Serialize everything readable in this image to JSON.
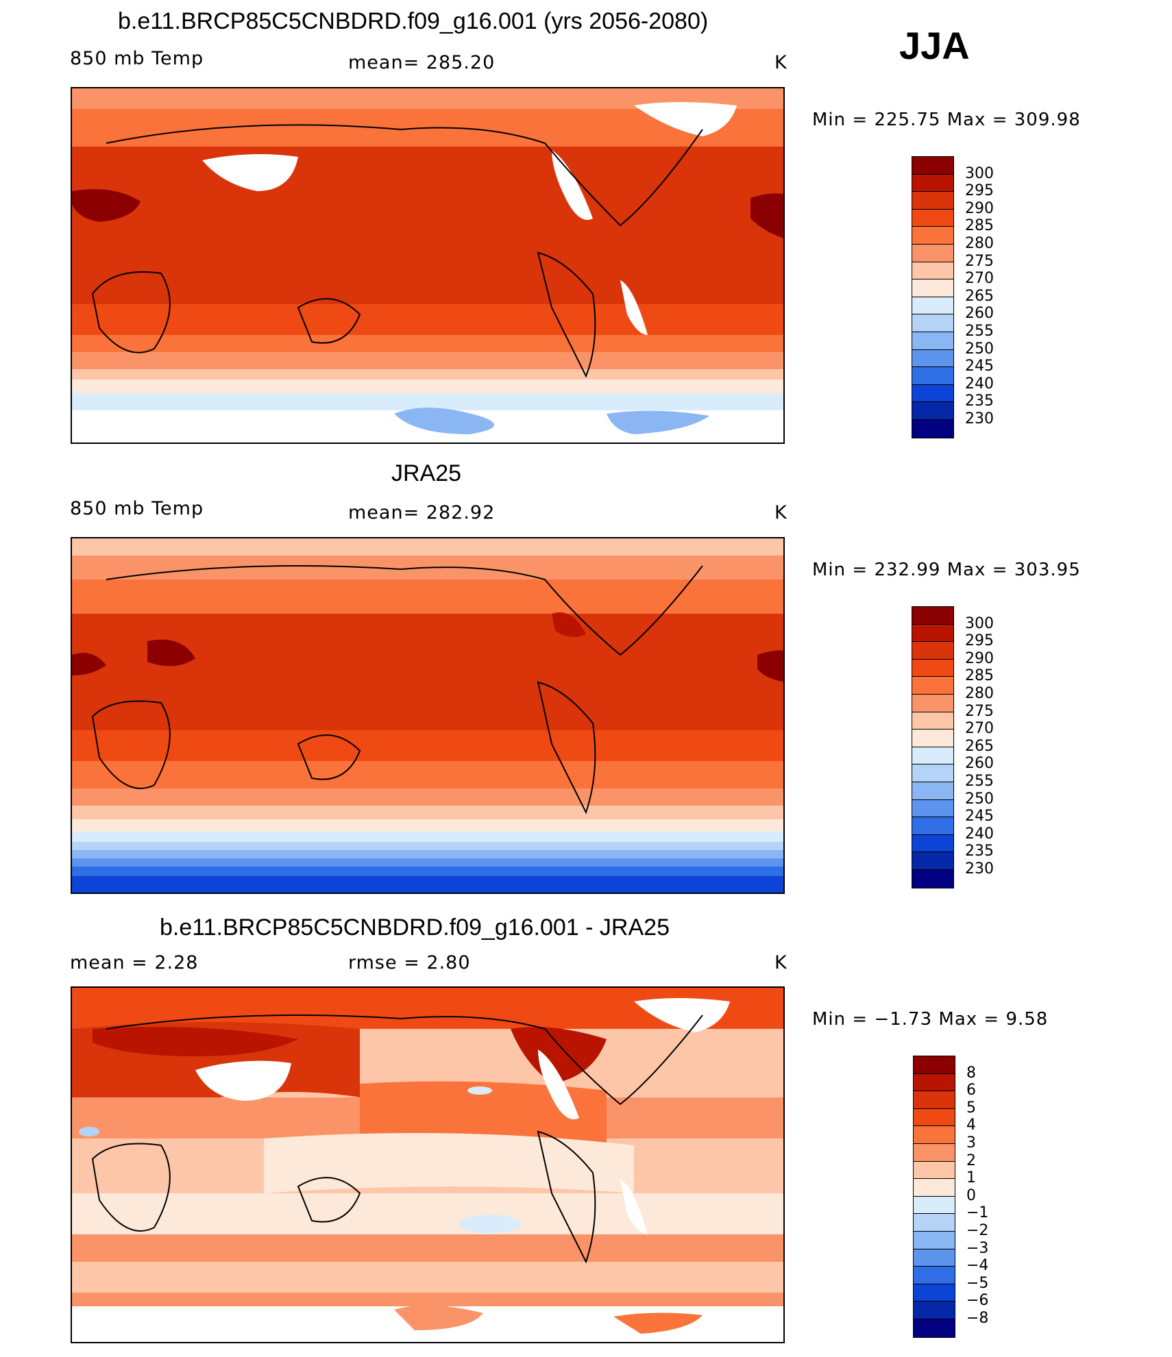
{
  "season": "JJA",
  "panels": [
    {
      "title": "b.e11.BRCP85C5CNBDRD.f09_g16.001 (yrs 2056-2080)",
      "variable": "850 mb Temp",
      "stat1": "mean=  285.20",
      "units": "K",
      "range": "Min  =  225.75  Max  =  309.98"
    },
    {
      "title": "JRA25",
      "variable": "850 mb Temp",
      "stat1": "mean=  282.92",
      "units": "K",
      "range": "Min  =  232.99  Max  =  303.95"
    },
    {
      "title": "b.e11.BRCP85C5CNBDRD.f09_g16.001 - JRA25",
      "variable": "mean =     2.28",
      "stat1": "rmse =     2.80",
      "units": "K",
      "range": "Min  =   −1.73  Max  =     9.58"
    }
  ],
  "colorbar_abs": {
    "labels": [
      "300",
      "295",
      "290",
      "285",
      "280",
      "275",
      "270",
      "265",
      "260",
      "255",
      "250",
      "245",
      "240",
      "235",
      "230"
    ],
    "colors": [
      "#8b0000",
      "#b81400",
      "#d9340a",
      "#f04a14",
      "#f9733a",
      "#fa9468",
      "#fdc6a8",
      "#fde9d9",
      "#d8ecfb",
      "#b4d3f7",
      "#8ab6f4",
      "#5c94ee",
      "#2f6ee4",
      "#0b44d6",
      "#0428a8",
      "#000080"
    ]
  },
  "colorbar_diff": {
    "labels": [
      "8",
      "6",
      "5",
      "4",
      "3",
      "2",
      "1",
      "0",
      "−1",
      "−2",
      "−3",
      "−4",
      "−5",
      "−6",
      "−8"
    ],
    "colors": [
      "#8b0000",
      "#b81400",
      "#d9340a",
      "#f04a14",
      "#f9733a",
      "#fa9468",
      "#fdc6a8",
      "#fde9d9",
      "#d8ecfb",
      "#b4d3f7",
      "#8ab6f4",
      "#5c94ee",
      "#2f6ee4",
      "#0b44d6",
      "#0428a8",
      "#000080"
    ]
  }
}
